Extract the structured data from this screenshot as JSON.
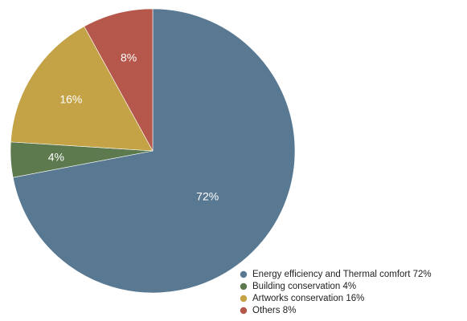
{
  "chart_data": {
    "type": "pie",
    "title": "",
    "start_angle": "12 o'clock",
    "direction": "clockwise",
    "slices": [
      {
        "label": "Energy efficiency and Thermal comfort",
        "value": 72,
        "value_label": "72%",
        "legend": "Energy efficiency and Thermal comfort 72%",
        "color": "#597892"
      },
      {
        "label": "Building conservation",
        "value": 4,
        "value_label": "4%",
        "legend": "Building conservation 4%",
        "color": "#5c7a4e"
      },
      {
        "label": "Artworks conservation",
        "value": 16,
        "value_label": "16%",
        "legend": "Artworks conservation 16%",
        "color": "#c4a347"
      },
      {
        "label": "Others",
        "value": 8,
        "value_label": "8%",
        "legend": "Others 8%",
        "color": "#b5574a"
      }
    ],
    "legend_position": "bottom-right"
  }
}
